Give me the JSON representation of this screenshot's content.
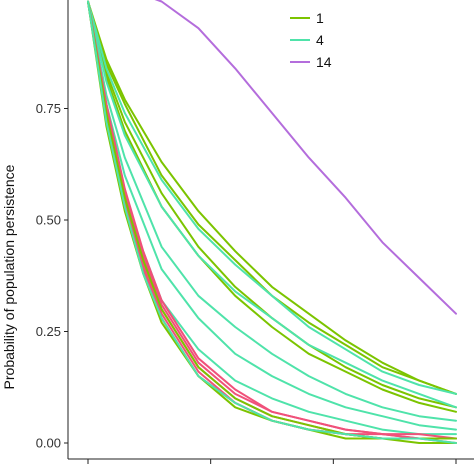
{
  "chart_data": {
    "type": "line",
    "ylabel": "Probability of population persistence",
    "xlabel": "",
    "ylim": [
      0,
      1
    ],
    "y_ticks": [
      "0.00",
      "0.25",
      "0.50",
      "0.75"
    ],
    "y_tick_values": [
      0,
      0.25,
      0.5,
      0.75
    ],
    "x_tick_count": 4,
    "x_range": [
      0,
      300
    ],
    "grid": false,
    "legend_position": "top-right",
    "legend": [
      {
        "label": "1",
        "color": "#7cc400"
      },
      {
        "label": "4",
        "color": "#4fe3aa"
      },
      {
        "label": "14",
        "color": "#b46ddc"
      }
    ],
    "series": [
      {
        "legend": "14",
        "color": "#b46ddc",
        "x": [
          50,
          60,
          90,
          120,
          150,
          180,
          210,
          240,
          270,
          300
        ],
        "values": [
          1.0,
          0.99,
          0.93,
          0.84,
          0.74,
          0.64,
          0.55,
          0.45,
          0.37,
          0.29
        ]
      },
      {
        "legend": "1",
        "color": "#7cc400",
        "x": [
          0,
          15,
          30,
          60,
          90,
          120,
          150,
          180,
          210,
          240,
          270,
          300
        ],
        "values": [
          0.99,
          0.86,
          0.77,
          0.63,
          0.52,
          0.43,
          0.35,
          0.29,
          0.23,
          0.18,
          0.14,
          0.11
        ]
      },
      {
        "legend": "1",
        "color": "#7cc400",
        "x": [
          0,
          15,
          30,
          60,
          90,
          120,
          150,
          180,
          210,
          240,
          270,
          300
        ],
        "values": [
          0.99,
          0.85,
          0.76,
          0.6,
          0.49,
          0.41,
          0.33,
          0.27,
          0.22,
          0.17,
          0.14,
          0.11
        ]
      },
      {
        "legend": "1",
        "color": "#7cc400",
        "x": [
          0,
          15,
          30,
          60,
          90,
          120,
          150,
          180,
          210,
          240,
          270,
          300
        ],
        "values": [
          0.99,
          0.83,
          0.72,
          0.56,
          0.44,
          0.35,
          0.28,
          0.22,
          0.17,
          0.13,
          0.1,
          0.08
        ]
      },
      {
        "legend": "1",
        "color": "#7cc400",
        "x": [
          0,
          15,
          30,
          60,
          90,
          120,
          150,
          180,
          210,
          240,
          270,
          300
        ],
        "values": [
          0.99,
          0.82,
          0.7,
          0.53,
          0.42,
          0.33,
          0.26,
          0.2,
          0.16,
          0.12,
          0.09,
          0.07
        ]
      },
      {
        "legend": "4",
        "color": "#4fe3aa",
        "x": [
          0,
          15,
          30,
          60,
          90,
          120,
          150,
          180,
          210,
          240,
          270,
          300
        ],
        "values": [
          0.99,
          0.84,
          0.74,
          0.59,
          0.48,
          0.4,
          0.33,
          0.26,
          0.21,
          0.16,
          0.13,
          0.11
        ]
      },
      {
        "legend": "4",
        "color": "#4fe3aa",
        "x": [
          0,
          15,
          30,
          60,
          90,
          120,
          150,
          180,
          210,
          240,
          270,
          300
        ],
        "values": [
          0.99,
          0.81,
          0.69,
          0.53,
          0.42,
          0.34,
          0.28,
          0.22,
          0.18,
          0.14,
          0.11,
          0.08
        ]
      },
      {
        "legend": "4",
        "color": "#4fe3aa",
        "x": [
          0,
          15,
          30,
          60,
          90,
          120,
          150,
          180,
          210,
          240,
          270,
          300
        ],
        "values": [
          0.99,
          0.78,
          0.64,
          0.44,
          0.33,
          0.26,
          0.2,
          0.15,
          0.11,
          0.08,
          0.06,
          0.05
        ]
      },
      {
        "legend": "4",
        "color": "#4fe3aa",
        "x": [
          0,
          15,
          30,
          60,
          90,
          120,
          150,
          180,
          210,
          240,
          270,
          300
        ],
        "values": [
          0.99,
          0.76,
          0.6,
          0.39,
          0.28,
          0.2,
          0.15,
          0.11,
          0.08,
          0.06,
          0.04,
          0.03
        ]
      },
      {
        "legend": "4",
        "color": "#4fe3aa",
        "x": [
          0,
          15,
          30,
          60,
          90,
          120,
          150,
          180,
          210,
          240,
          270,
          300
        ],
        "values": [
          0.99,
          0.73,
          0.54,
          0.32,
          0.21,
          0.14,
          0.1,
          0.07,
          0.05,
          0.03,
          0.02,
          0.02
        ]
      },
      {
        "legend": "",
        "color": "#f0517a",
        "x": [
          0,
          15,
          30,
          45,
          60,
          90,
          120,
          150,
          180,
          210,
          240,
          270,
          300
        ],
        "values": [
          0.99,
          0.76,
          0.57,
          0.43,
          0.32,
          0.19,
          0.12,
          0.07,
          0.05,
          0.03,
          0.02,
          0.02,
          0.01
        ]
      },
      {
        "legend": "",
        "color": "#f0517a",
        "x": [
          0,
          15,
          30,
          45,
          60,
          90,
          120,
          150,
          180,
          210,
          240,
          270,
          300
        ],
        "values": [
          0.99,
          0.75,
          0.56,
          0.42,
          0.31,
          0.18,
          0.11,
          0.07,
          0.05,
          0.03,
          0.02,
          0.01,
          0.01
        ]
      },
      {
        "legend": "",
        "color": "#f0517a",
        "x": [
          0,
          15,
          30,
          45,
          60,
          90,
          120,
          150,
          180,
          210,
          240,
          270,
          300
        ],
        "values": [
          0.99,
          0.74,
          0.55,
          0.41,
          0.3,
          0.17,
          0.1,
          0.06,
          0.04,
          0.02,
          0.02,
          0.01,
          0.01
        ]
      },
      {
        "legend": "",
        "color": "#f0517a",
        "x": [
          0,
          15,
          30,
          45,
          60,
          90,
          120,
          150,
          180,
          210,
          240,
          270,
          300
        ],
        "values": [
          0.99,
          0.73,
          0.54,
          0.4,
          0.29,
          0.16,
          0.09,
          0.05,
          0.03,
          0.02,
          0.01,
          0.01,
          0.01
        ]
      },
      {
        "legend": "",
        "color": "#f0517a",
        "x": [
          0,
          15,
          30,
          45,
          60,
          90,
          120,
          150,
          180,
          210,
          240,
          270,
          300
        ],
        "values": [
          0.99,
          0.72,
          0.53,
          0.39,
          0.28,
          0.15,
          0.09,
          0.05,
          0.03,
          0.02,
          0.01,
          0.01,
          0.0
        ]
      },
      {
        "legend": "1",
        "color": "#7cc400",
        "x": [
          0,
          15,
          30,
          45,
          60,
          90,
          120,
          150,
          180,
          210,
          240,
          270,
          300
        ],
        "values": [
          0.99,
          0.74,
          0.55,
          0.41,
          0.3,
          0.17,
          0.1,
          0.06,
          0.04,
          0.02,
          0.01,
          0.01,
          0.01
        ]
      },
      {
        "legend": "1",
        "color": "#7cc400",
        "x": [
          0,
          15,
          30,
          45,
          60,
          90,
          120,
          150,
          180,
          210,
          240,
          270,
          300
        ],
        "values": [
          0.99,
          0.71,
          0.52,
          0.38,
          0.27,
          0.15,
          0.08,
          0.05,
          0.03,
          0.01,
          0.01,
          0.0,
          0.0
        ]
      },
      {
        "legend": "4",
        "color": "#4fe3aa",
        "x": [
          0,
          15,
          30,
          45,
          60,
          90,
          120,
          150,
          180,
          210,
          240,
          270,
          300
        ],
        "values": [
          0.99,
          0.72,
          0.53,
          0.38,
          0.28,
          0.15,
          0.09,
          0.05,
          0.03,
          0.02,
          0.01,
          0.01,
          0.0
        ]
      }
    ]
  }
}
